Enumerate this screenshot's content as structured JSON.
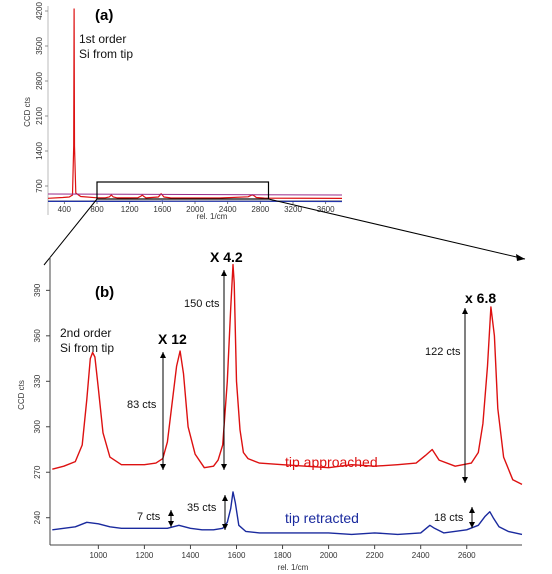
{
  "colors": {
    "tip_approached": "#dd1111",
    "tip_retracted": "#1a2a9e",
    "inset_blue": "#2233aa",
    "inset_magenta": "#9a2a8a"
  },
  "chart_data": [
    {
      "panel": "(a)",
      "type": "line",
      "xlabel": "rel. 1/cm",
      "ylabel": "CCD cts",
      "xlim": [
        200,
        3800
      ],
      "ylim": [
        400,
        4300
      ],
      "x_ticks": [
        "400",
        "800",
        "1200",
        "1600",
        "2000",
        "2400",
        "2800",
        "3200",
        "3600"
      ],
      "y_ticks": [
        "700",
        "1400",
        "2100",
        "2800",
        "3500",
        "4200"
      ],
      "annotation": "1st order\nSi from tip",
      "zoom_box_x": [
        800,
        2900
      ],
      "series": [
        {
          "x": [
            200,
            380,
            460,
            500,
            515,
            520,
            525,
            540,
            600,
            800,
            900,
            950,
            975,
            1000,
            1050,
            1300,
            1340,
            1355,
            1370,
            1400,
            1550,
            1585,
            1600,
            1620,
            1700,
            2300,
            2650,
            2700,
            2725,
            2750,
            2850,
            3800
          ],
          "y": [
            455,
            470,
            480,
            520,
            1500,
            4250,
            1500,
            560,
            490,
            465,
            465,
            480,
            520,
            480,
            462,
            465,
            500,
            520,
            495,
            462,
            480,
            545,
            520,
            480,
            462,
            460,
            485,
            525,
            505,
            470,
            458,
            452
          ]
        },
        {
          "x": [
            200,
            800,
            1580,
            1600,
            1620,
            2700,
            3800
          ],
          "y": [
            392,
            392,
            394,
            402,
            394,
            395,
            390
          ]
        }
      ]
    },
    {
      "panel": "(b)",
      "type": "line",
      "xlabel": "rel. 1/cm",
      "ylabel": "CCD cts",
      "xlim": [
        790,
        2840
      ],
      "ylim": [
        222,
        412
      ],
      "x_ticks": [
        1000,
        1200,
        1400,
        1600,
        1800,
        2000,
        2200,
        2400,
        2600
      ],
      "y_ticks": [
        240,
        270,
        300,
        330,
        360,
        390
      ],
      "annotations": {
        "si_label": "2nd order\nSi from tip",
        "m1": "X 12",
        "m2": "X 4.2",
        "m3": "x 6.8",
        "c1": "83 cts",
        "c2": "150 cts",
        "c3": "122 cts",
        "c4": "7 cts",
        "c5": "35 cts",
        "c6": "18 cts"
      },
      "series": [
        {
          "name": "tip approached",
          "x": [
            800,
            850,
            900,
            930,
            950,
            965,
            975,
            985,
            1000,
            1020,
            1050,
            1100,
            1200,
            1250,
            1280,
            1300,
            1320,
            1340,
            1355,
            1370,
            1390,
            1420,
            1460,
            1500,
            1520,
            1540,
            1560,
            1575,
            1585,
            1590,
            1600,
            1615,
            1630,
            1650,
            1700,
            1800,
            1900,
            2000,
            2100,
            2200,
            2300,
            2380,
            2420,
            2450,
            2480,
            2550,
            2620,
            2650,
            2670,
            2690,
            2705,
            2720,
            2735,
            2760,
            2800,
            2840
          ],
          "y": [
            272,
            274,
            277,
            288,
            318,
            345,
            349,
            346,
            325,
            296,
            280,
            275,
            275,
            276,
            279,
            290,
            315,
            340,
            350,
            335,
            300,
            282,
            273,
            274,
            278,
            288,
            330,
            378,
            407,
            395,
            330,
            298,
            283,
            279,
            276,
            275,
            274,
            273,
            275,
            274,
            275,
            276,
            281,
            285,
            278,
            274,
            276,
            283,
            302,
            340,
            379,
            360,
            312,
            280,
            265,
            262
          ]
        },
        {
          "name": "tip retracted",
          "x": [
            800,
            850,
            900,
            950,
            1000,
            1050,
            1100,
            1200,
            1300,
            1350,
            1400,
            1450,
            1500,
            1540,
            1560,
            1575,
            1585,
            1595,
            1610,
            1640,
            1700,
            1800,
            1900,
            2000,
            2100,
            2200,
            2300,
            2400,
            2440,
            2460,
            2500,
            2600,
            2650,
            2680,
            2700,
            2715,
            2740,
            2780,
            2840
          ],
          "y": [
            232,
            233,
            234,
            237,
            236,
            234,
            233,
            233,
            233,
            235,
            233,
            232,
            232,
            233,
            237,
            246,
            257,
            250,
            235,
            231,
            230,
            230,
            230,
            230,
            229,
            230,
            229,
            230,
            235,
            233,
            230,
            232,
            235,
            241,
            244,
            240,
            234,
            231,
            229
          ]
        }
      ]
    }
  ]
}
